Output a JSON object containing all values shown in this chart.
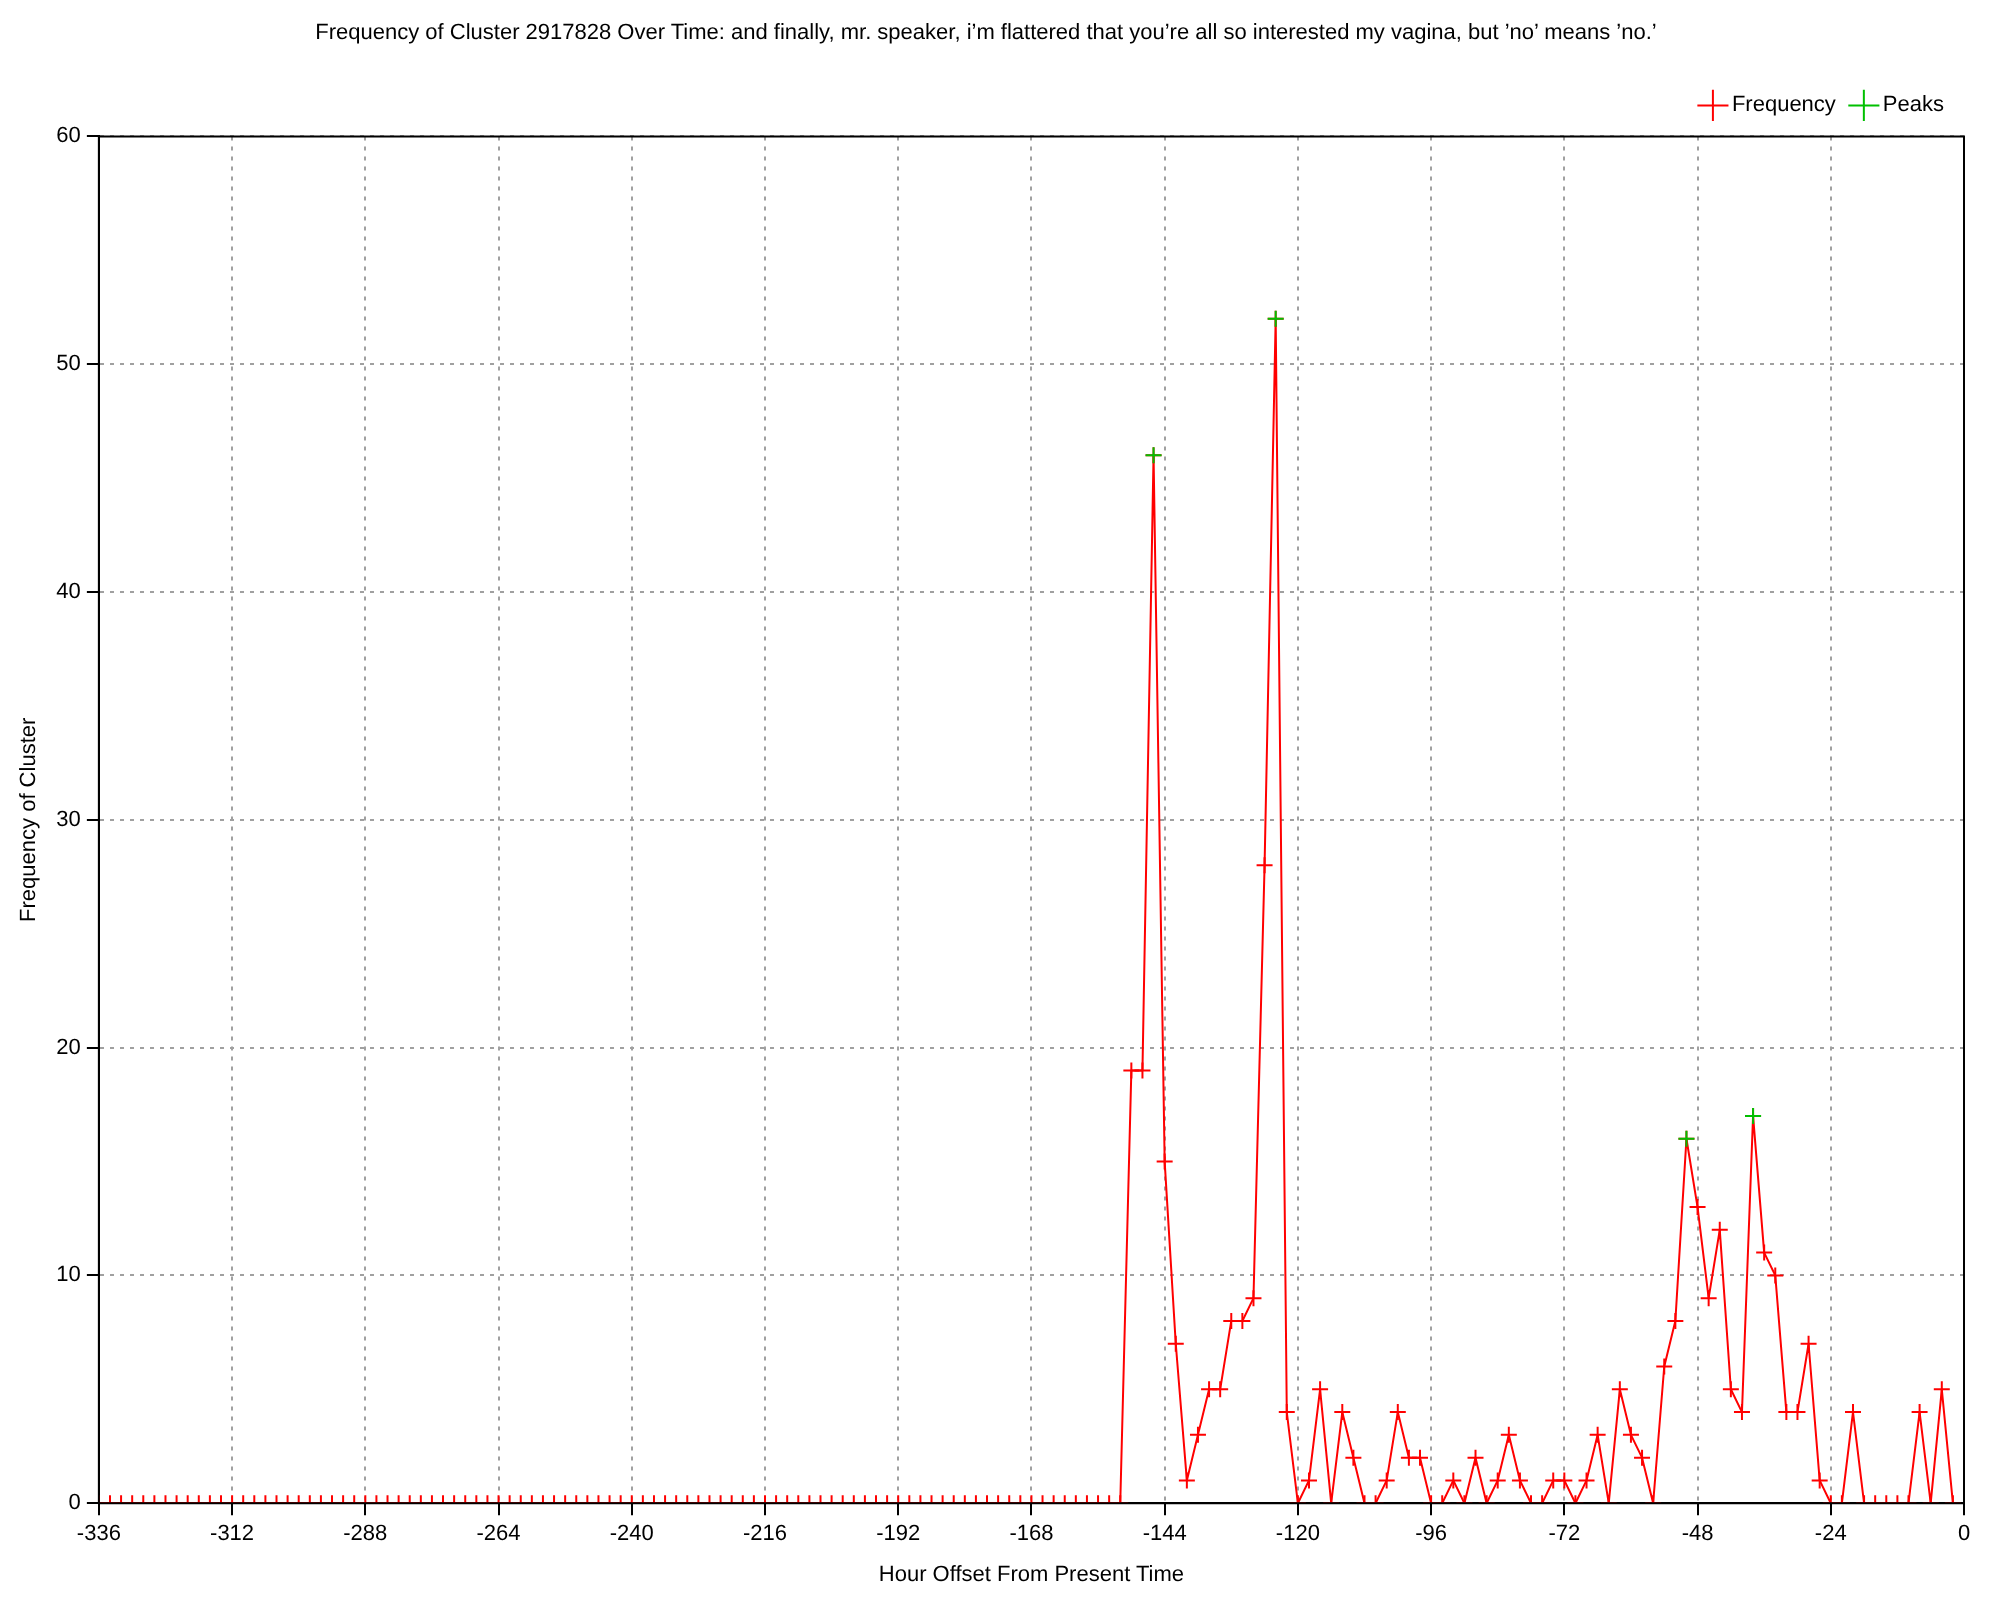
{
  "chart_data": {
    "type": "line",
    "title": "Frequency of Cluster 2917828 Over Time: and finally, mr. speaker, i’m flattered that you’re all so interested my vagina, but ’no’ means ’no.’",
    "xlabel": "Hour Offset From Present Time",
    "ylabel": "Frequency of Cluster",
    "xlim": [
      -336,
      0
    ],
    "xticks": [
      -336,
      -312,
      -288,
      -264,
      -240,
      -216,
      -192,
      -168,
      -144,
      -120,
      -96,
      -72,
      -48,
      -24,
      0
    ],
    "ylim": [
      0,
      60
    ],
    "yticks": [
      0,
      10,
      20,
      30,
      40,
      50,
      60
    ],
    "grid": true,
    "legend": "top right",
    "series": [
      {
        "name": "Frequency",
        "color": "#ff0000",
        "marker": "cross",
        "x": [
          -336,
          -334,
          -332,
          -330,
          -328,
          -326,
          -324,
          -322,
          -320,
          -318,
          -316,
          -314,
          -312,
          -310,
          -308,
          -306,
          -304,
          -302,
          -300,
          -298,
          -296,
          -294,
          -292,
          -290,
          -288,
          -286,
          -284,
          -282,
          -280,
          -278,
          -276,
          -274,
          -272,
          -270,
          -268,
          -266,
          -264,
          -262,
          -260,
          -258,
          -256,
          -254,
          -252,
          -250,
          -248,
          -246,
          -244,
          -242,
          -240,
          -238,
          -236,
          -234,
          -232,
          -230,
          -228,
          -226,
          -224,
          -222,
          -220,
          -218,
          -216,
          -214,
          -212,
          -210,
          -208,
          -206,
          -204,
          -202,
          -200,
          -198,
          -196,
          -194,
          -192,
          -190,
          -188,
          -186,
          -184,
          -182,
          -180,
          -178,
          -176,
          -174,
          -172,
          -170,
          -168,
          -166,
          -164,
          -162,
          -160,
          -158,
          -156,
          -154,
          -152,
          -150,
          -148,
          -146,
          -144,
          -142,
          -140,
          -138,
          -136,
          -134,
          -132,
          -130,
          -128,
          -126,
          -124,
          -122,
          -120,
          -118,
          -116,
          -114,
          -112,
          -110,
          -108,
          -106,
          -104,
          -102,
          -100,
          -98,
          -96,
          -94,
          -92,
          -90,
          -88,
          -86,
          -84,
          -82,
          -80,
          -78,
          -76,
          -74,
          -72,
          -70,
          -68,
          -66,
          -64,
          -62,
          -60,
          -58,
          -56,
          -54,
          -52,
          -50,
          -48,
          -46,
          -44,
          -42,
          -40,
          -38,
          -36,
          -34,
          -32,
          -30,
          -28,
          -26,
          -24,
          -22,
          -20,
          -18,
          -16,
          -14,
          -12,
          -10,
          -8,
          -6,
          -4,
          -2
        ],
        "values": [
          0,
          0,
          0,
          0,
          0,
          0,
          0,
          0,
          0,
          0,
          0,
          0,
          0,
          0,
          0,
          0,
          0,
          0,
          0,
          0,
          0,
          0,
          0,
          0,
          0,
          0,
          0,
          0,
          0,
          0,
          0,
          0,
          0,
          0,
          0,
          0,
          0,
          0,
          0,
          0,
          0,
          0,
          0,
          0,
          0,
          0,
          0,
          0,
          0,
          0,
          0,
          0,
          0,
          0,
          0,
          0,
          0,
          0,
          0,
          0,
          0,
          0,
          0,
          0,
          0,
          0,
          0,
          0,
          0,
          0,
          0,
          0,
          0,
          0,
          0,
          0,
          0,
          0,
          0,
          0,
          0,
          0,
          0,
          0,
          0,
          0,
          0,
          0,
          0,
          0,
          0,
          0,
          0,
          19,
          19,
          46,
          15,
          7,
          1,
          3,
          5,
          5,
          8,
          8,
          9,
          28,
          52,
          4,
          0,
          1,
          5,
          0,
          4,
          2,
          0,
          0,
          1,
          4,
          2,
          2,
          0,
          0,
          1,
          0,
          2,
          0,
          1,
          3,
          1,
          0,
          0,
          1,
          1,
          0,
          1,
          3,
          0,
          5,
          3,
          2,
          0,
          6,
          8,
          16,
          13,
          9,
          12,
          5,
          4,
          17,
          11,
          10,
          4,
          4,
          7,
          1,
          0,
          0,
          4,
          0,
          0,
          0,
          0,
          0,
          4,
          0,
          5,
          0
        ]
      },
      {
        "name": "Peaks",
        "type": "scatter",
        "color": "#00c000",
        "marker": "cross",
        "x": [
          -146,
          -124,
          -50,
          -38
        ],
        "values": [
          46,
          52,
          16,
          17
        ]
      }
    ]
  }
}
